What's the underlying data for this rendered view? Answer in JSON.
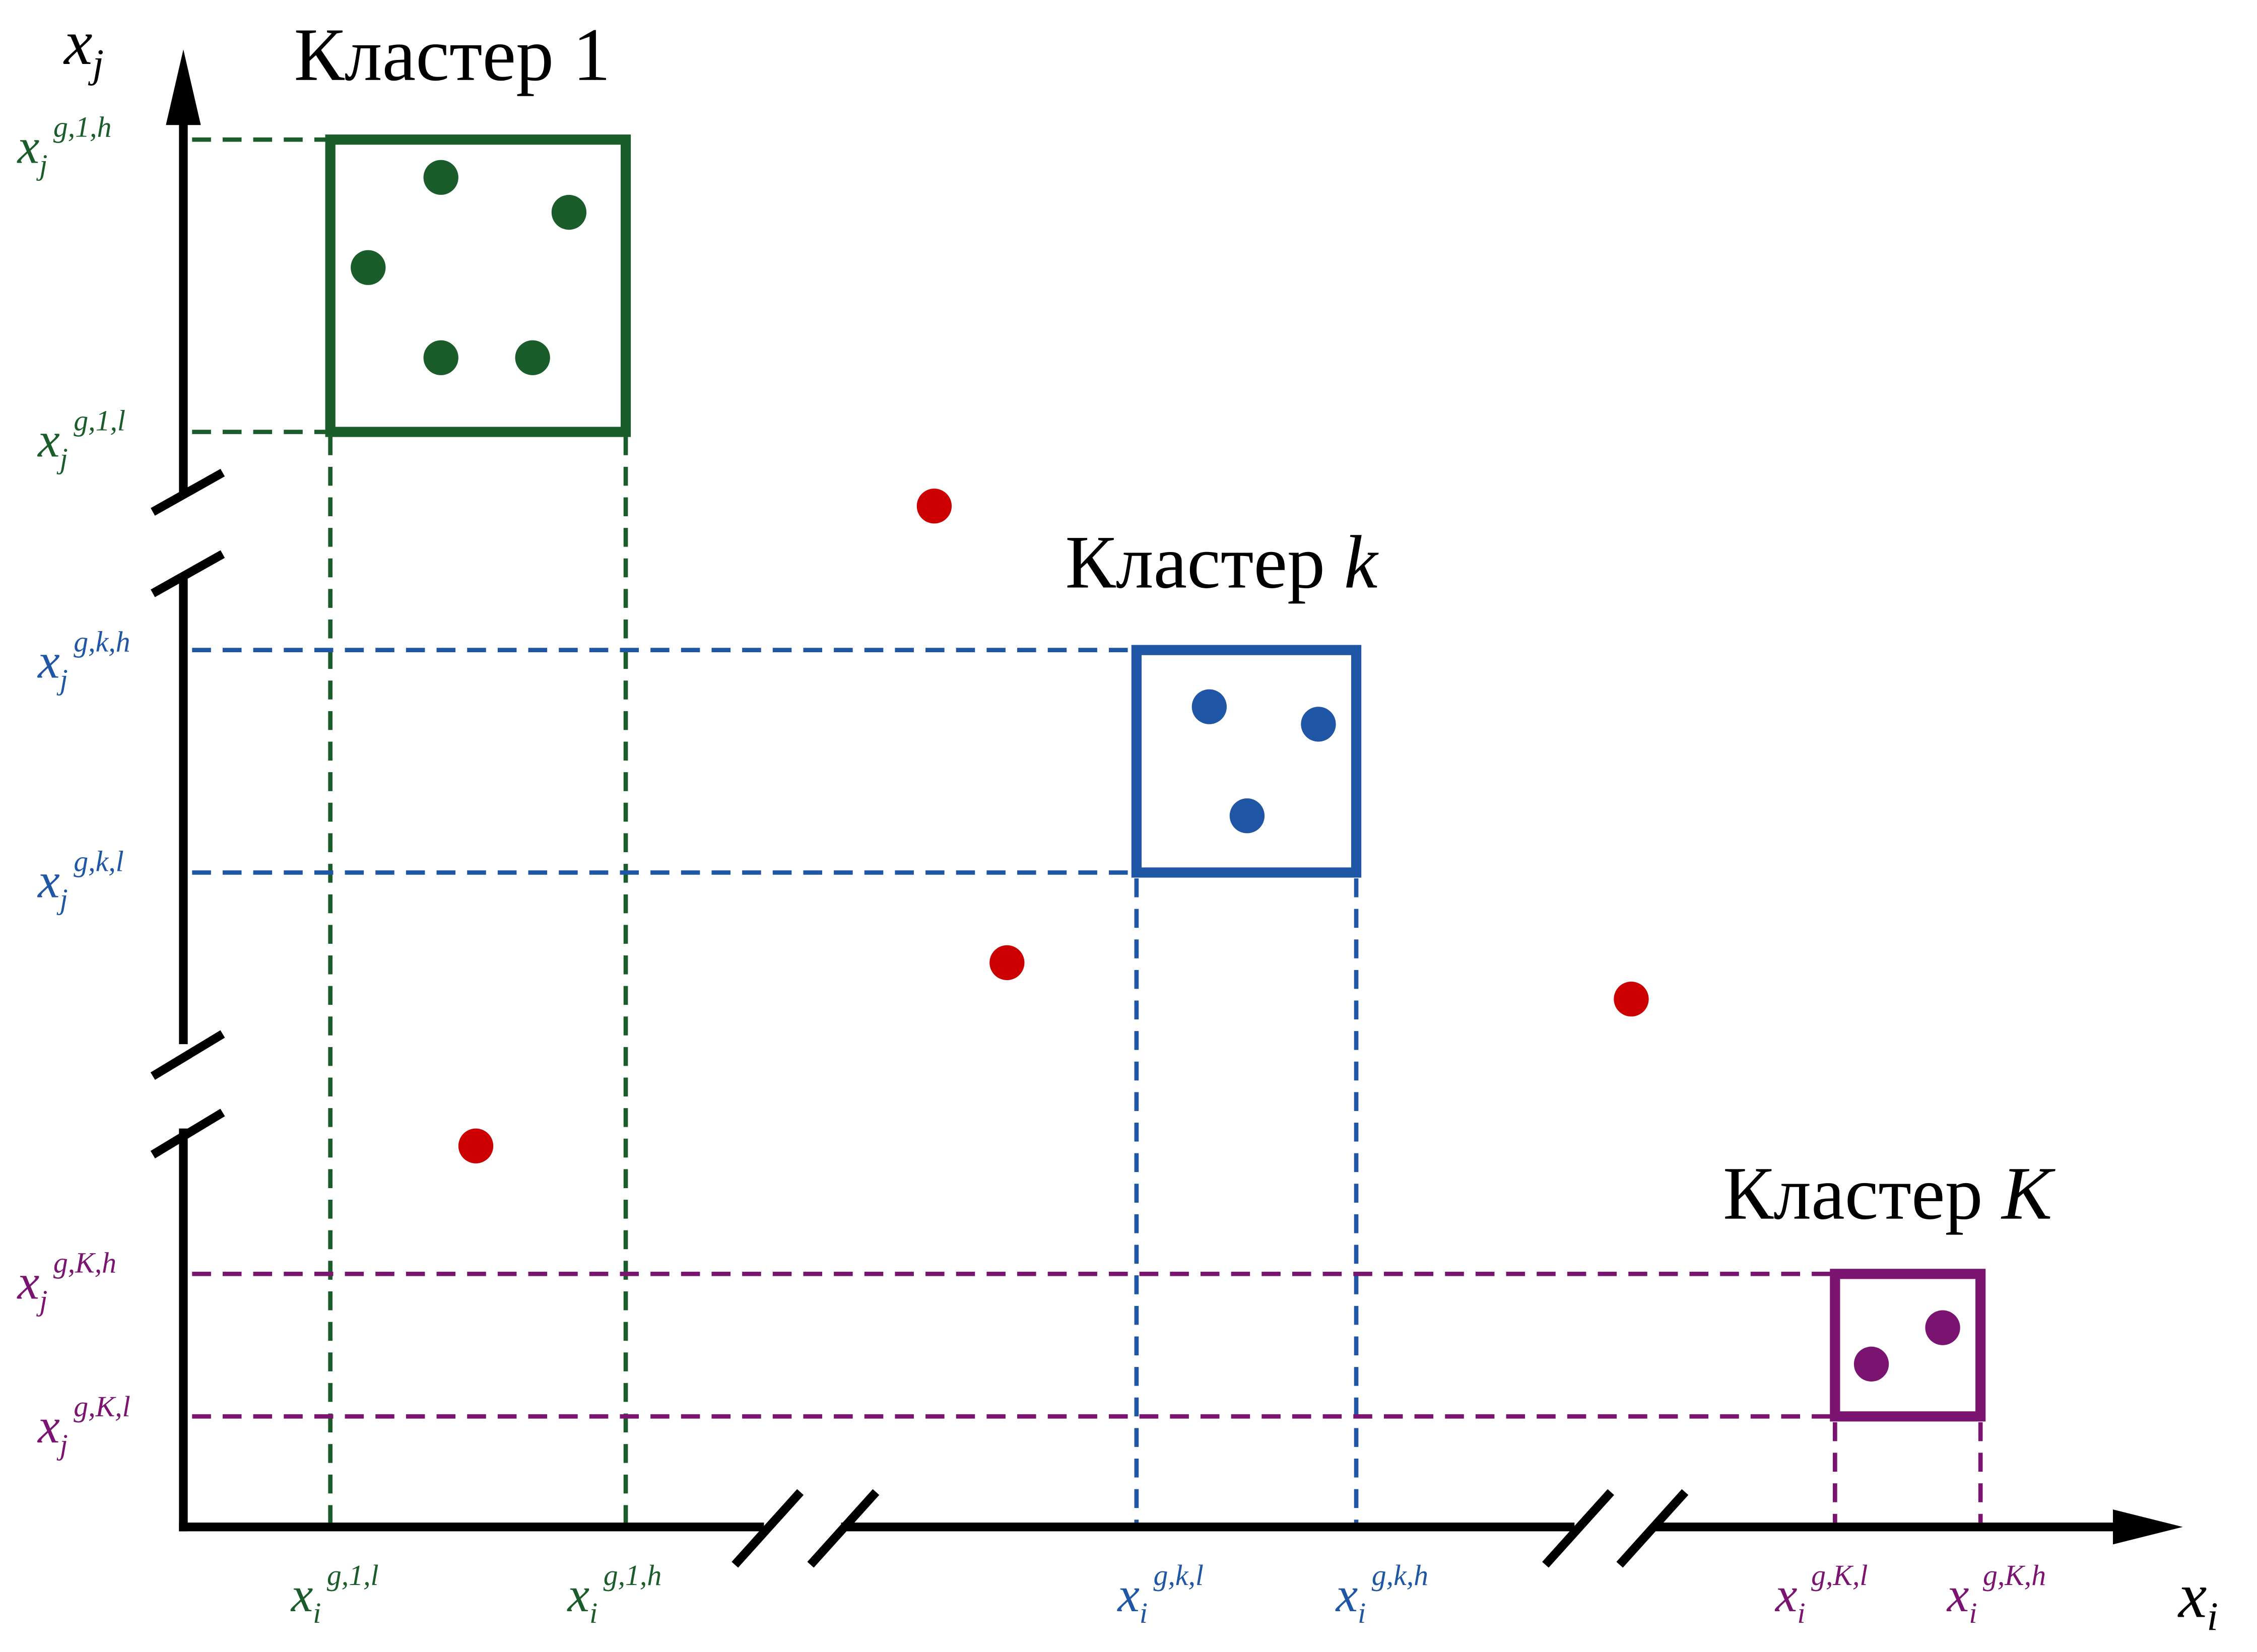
{
  "colors": {
    "axis": "#000000",
    "cluster_1": "#1a5c2a",
    "cluster_k": "#1f56a5",
    "cluster_K": "#7a1470",
    "outlier": "#cc0000"
  },
  "axes": {
    "x_label": {
      "base": "x",
      "sub": "i"
    },
    "y_label": {
      "base": "x",
      "sub": "j"
    }
  },
  "clusters": [
    {
      "id": "c1",
      "title_prefix": "Кластер",
      "title_index": "1",
      "color_key": "cluster_1",
      "y_high": {
        "base": "x",
        "sub": "j",
        "sup": "g,1,h"
      },
      "y_low": {
        "base": "x",
        "sub": "j",
        "sup": "g,1,l"
      },
      "x_low": {
        "base": "x",
        "sub": "i",
        "sup": "g,1,l"
      },
      "x_high": {
        "base": "x",
        "sub": "i",
        "sup": "g,1,h"
      }
    },
    {
      "id": "ck",
      "title_prefix": "Кластер",
      "title_index": "k",
      "color_key": "cluster_k",
      "y_high": {
        "base": "x",
        "sub": "j",
        "sup": "g,k,h"
      },
      "y_low": {
        "base": "x",
        "sub": "j",
        "sup": "g,k,l"
      },
      "x_low": {
        "base": "x",
        "sub": "i",
        "sup": "g,k,l"
      },
      "x_high": {
        "base": "x",
        "sub": "i",
        "sup": "g,k,h"
      }
    },
    {
      "id": "cK",
      "title_prefix": "Кластер",
      "title_index": "K",
      "color_key": "cluster_K",
      "y_high": {
        "base": "x",
        "sub": "j",
        "sup": "g,K,h"
      },
      "y_low": {
        "base": "x",
        "sub": "j",
        "sup": "g,K,l"
      },
      "x_low": {
        "base": "x",
        "sub": "i",
        "sup": "g,K,l"
      },
      "x_high": {
        "base": "x",
        "sub": "i",
        "sup": "g,K,h"
      }
    }
  ]
}
